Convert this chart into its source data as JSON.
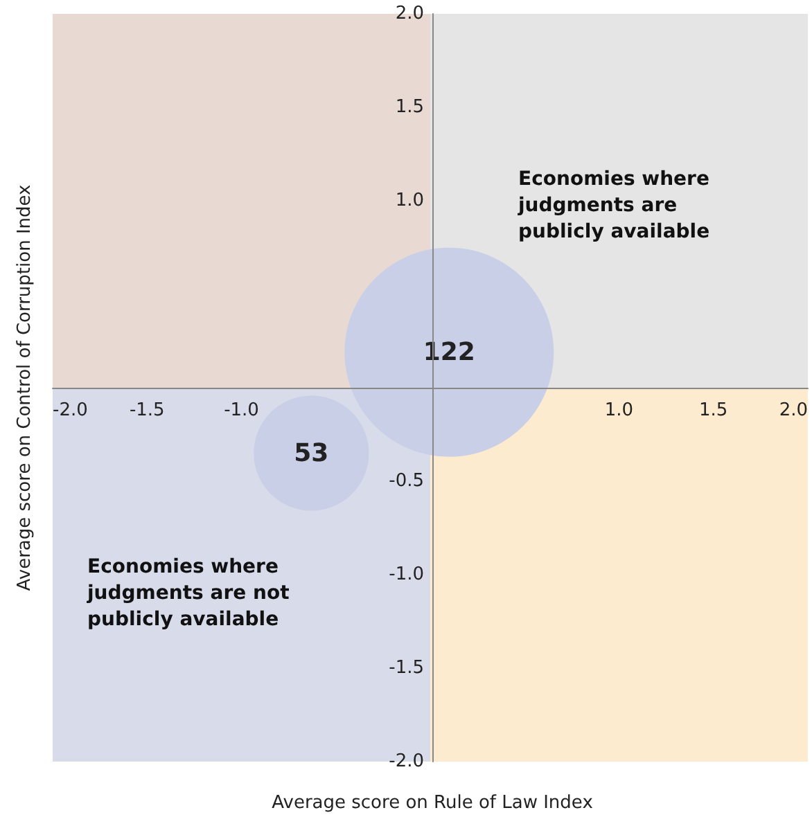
{
  "chart_data": {
    "type": "bubble",
    "xlabel": "Average score on Rule of Law Index",
    "ylabel": "Average score on Control of Corruption Index",
    "x": [
      0.1,
      -0.63
    ],
    "values": [
      0.19,
      -0.35
    ],
    "sizes": [
      1,
      0.3
    ],
    "color": "#c9cfe6",
    "xlim": [
      -2,
      2
    ],
    "ylim": [
      -2,
      2
    ],
    "xticks": [
      {
        "value": -2,
        "label": "-2.0"
      },
      {
        "value": -1.5,
        "label": "-1.5"
      },
      {
        "value": -1,
        "label": "-1.0"
      },
      {
        "value": 1,
        "label": "1.0"
      },
      {
        "value": 1.5,
        "label": "1.5"
      },
      {
        "value": 2,
        "label": "2.0"
      }
    ],
    "yticks": [
      {
        "value": -2,
        "label": "-2.0"
      },
      {
        "value": -1.5,
        "label": "-1.5"
      },
      {
        "value": -1,
        "label": "-1.0"
      },
      {
        "value": -0.5,
        "label": "-0.5"
      },
      {
        "value": 1,
        "label": "1.0"
      },
      {
        "value": 1.5,
        "label": "1.5"
      },
      {
        "value": 2,
        "label": "2.0"
      }
    ],
    "bands": [
      {
        "axis": "x",
        "from": -2,
        "to": 0,
        "color": "#e8dad3"
      },
      {
        "axis": "x",
        "from": 0,
        "to": 2,
        "color": "#e5e5e5"
      },
      {
        "axis": "x",
        "from": -2,
        "to": 0,
        "color": "#d8dbea"
      },
      {
        "axis": "x",
        "from": 0,
        "to": 2,
        "color": "#fdebd0"
      }
    ],
    "annotations": [
      "Economies where judgments are publicly available",
      "Economies where judgments are not publicly available",
      {
        "text": "122",
        "x": 0.1,
        "y": 0.19
      },
      {
        "text": "53",
        "x": -0.63,
        "y": -0.35
      }
    ],
    "grid": false
  }
}
